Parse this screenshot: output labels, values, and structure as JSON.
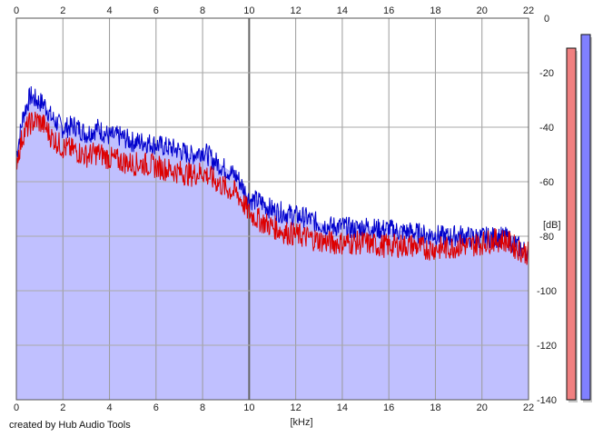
{
  "footer": "created by Hub Audio Tools",
  "chart_data": {
    "type": "area",
    "xlabel": "[kHz]",
    "ylabel": "[dB]",
    "xlim": [
      0,
      22
    ],
    "ylim": [
      -140,
      0
    ],
    "xticks": [
      0,
      2,
      4,
      6,
      8,
      10,
      12,
      14,
      16,
      18,
      20,
      22
    ],
    "yticks": [
      0,
      -20,
      -40,
      -60,
      -80,
      -100,
      -120,
      -140
    ],
    "grid": true,
    "series": [
      {
        "color": "#0000cc",
        "x": [
          0,
          0.3,
          0.6,
          0.9,
          1.2,
          1.5,
          2,
          2.5,
          3,
          3.5,
          4,
          4.5,
          5,
          5.5,
          6,
          6.5,
          7,
          7.5,
          8,
          8.5,
          9,
          9.5,
          10,
          10.5,
          11,
          11.5,
          12,
          12.5,
          13,
          13.5,
          14,
          14.5,
          15,
          15.5,
          16,
          16.5,
          17,
          17.5,
          18,
          18.5,
          19,
          19.5,
          20,
          20.5,
          21,
          21.5,
          22
        ],
        "y": [
          -50,
          -35,
          -28,
          -30,
          -31,
          -36,
          -40,
          -39,
          -42,
          -40,
          -43,
          -43,
          -45,
          -45,
          -46,
          -47,
          -48,
          -50,
          -48,
          -52,
          -55,
          -58,
          -66,
          -67,
          -70,
          -71,
          -72,
          -73,
          -75,
          -76,
          -76,
          -77,
          -76,
          -77,
          -77,
          -78,
          -78,
          -79,
          -79,
          -80,
          -79,
          -80,
          -80,
          -80,
          -80,
          -83,
          -86
        ]
      },
      {
        "color": "#dd0000",
        "x": [
          0,
          0.3,
          0.6,
          0.9,
          1.2,
          1.5,
          2,
          2.5,
          3,
          3.5,
          4,
          4.5,
          5,
          5.5,
          6,
          6.5,
          7,
          7.5,
          8,
          8.5,
          9,
          9.5,
          10,
          10.5,
          11,
          11.5,
          12,
          12.5,
          13,
          13.5,
          14,
          14.5,
          15,
          15.5,
          16,
          16.5,
          17,
          17.5,
          18,
          18.5,
          19,
          19.5,
          20,
          20.5,
          21,
          21.5,
          22
        ],
        "y": [
          -52,
          -42,
          -38,
          -37,
          -39,
          -43,
          -47,
          -48,
          -50,
          -49,
          -51,
          -52,
          -53,
          -53,
          -54,
          -55,
          -56,
          -57,
          -56,
          -59,
          -62,
          -64,
          -71,
          -74,
          -76,
          -78,
          -79,
          -80,
          -81,
          -82,
          -82,
          -82,
          -82,
          -83,
          -83,
          -83,
          -83,
          -84,
          -84,
          -84,
          -83,
          -83,
          -82,
          -81,
          -81,
          -84,
          -86
        ]
      }
    ],
    "levels": [
      {
        "color": "#f08080",
        "value": -11
      },
      {
        "color": "#8080ff",
        "value": -6
      }
    ]
  }
}
